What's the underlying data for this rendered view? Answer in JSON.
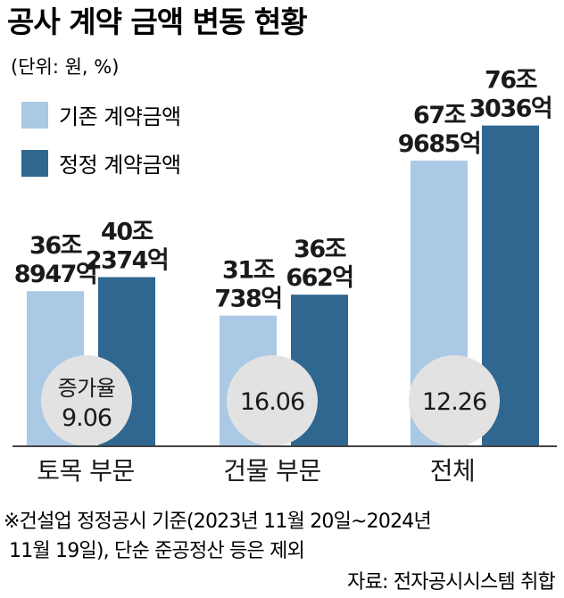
{
  "chart_data": {
    "type": "bar",
    "title": "공사 계약 금액 변동 현황",
    "unit": "(단위: 원, %)",
    "categories": [
      "토목 부문",
      "건물 부문",
      "전체"
    ],
    "series": [
      {
        "name": "기존 계약금액",
        "color": "#aac9e4",
        "values": [
          368947,
          310738,
          679685
        ],
        "labels": [
          [
            "36조",
            "8947억"
          ],
          [
            "31조",
            "738억"
          ],
          [
            "67조",
            "9685억"
          ]
        ]
      },
      {
        "name": "정정 계약금액",
        "color": "#2f6790",
        "values": [
          402374,
          360662,
          763036
        ],
        "labels": [
          [
            "40조",
            "2374억"
          ],
          [
            "36조",
            "662억"
          ],
          [
            "76조",
            "3036억"
          ]
        ]
      }
    ],
    "value_unit": "억원",
    "ylim": [
      0,
      775000
    ],
    "increase_rate": {
      "label": "증가율",
      "values": [
        "9.06",
        "16.06",
        "12.26"
      ]
    },
    "legend_position": "top-left",
    "grid": false
  },
  "notes": {
    "line1": "※건설업 정정공시 기준(2023년 11월 20일~2024년",
    "line2": "11월 19일), 단순 준공정산 등은 제외",
    "source": "자료: 전자공시시스템 취합"
  },
  "colors": {
    "circle": "#e2e2e2",
    "axis": "#444444",
    "text": "#1a1a1a"
  }
}
